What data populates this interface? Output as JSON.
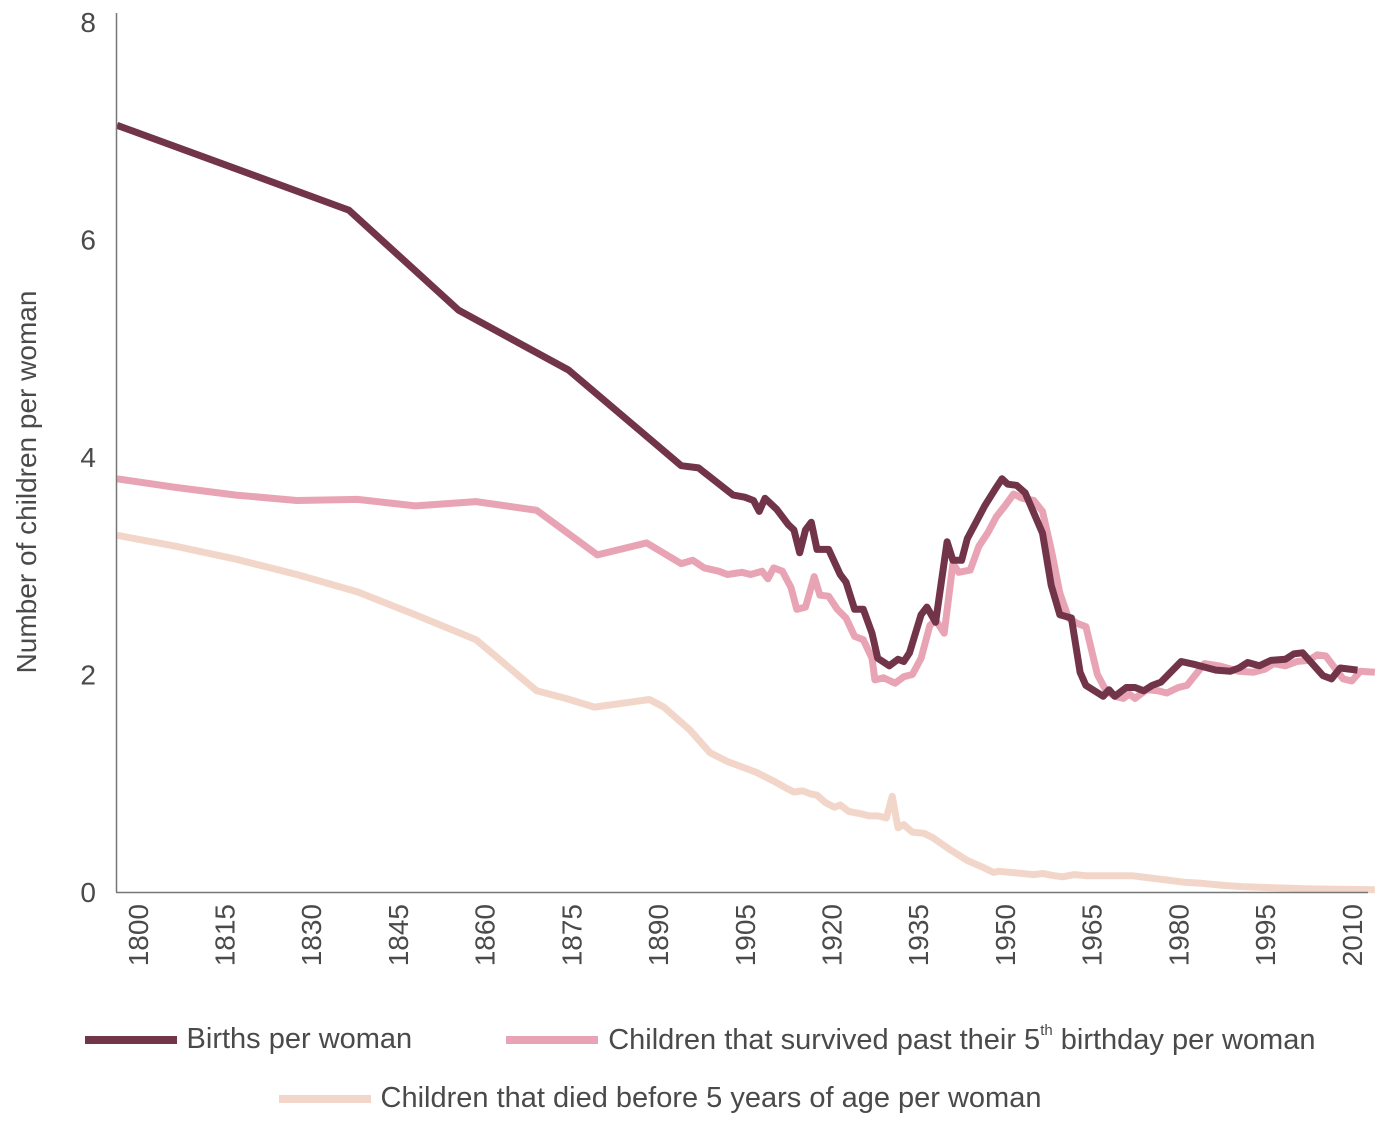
{
  "chart_data": {
    "type": "line",
    "title": "",
    "xlabel": "",
    "ylabel": "Number of children per woman",
    "xlim": [
      1796.4,
      2013.5
    ],
    "ylim": [
      0,
      8
    ],
    "yticks": [
      0,
      2,
      4,
      6,
      8
    ],
    "xticks": [
      1800,
      1815,
      1830,
      1845,
      1860,
      1875,
      1890,
      1905,
      1920,
      1935,
      1950,
      1965,
      1980,
      1995,
      2010
    ],
    "grid": false,
    "legend_position": "bottom",
    "series": [
      {
        "name": "Births per woman",
        "color": "#723449",
        "points": [
          [
            1796.4,
            7.05
          ],
          [
            1817,
            6.65
          ],
          [
            1836.5,
            6.27
          ],
          [
            1855.5,
            5.35
          ],
          [
            1874.5,
            4.8
          ],
          [
            1894,
            3.92
          ],
          [
            1897,
            3.9
          ],
          [
            1903,
            3.65
          ],
          [
            1905,
            3.63
          ],
          [
            1906.5,
            3.6
          ],
          [
            1907.5,
            3.5
          ],
          [
            1908.5,
            3.62
          ],
          [
            1910.5,
            3.52
          ],
          [
            1912.5,
            3.38
          ],
          [
            1913.5,
            3.33
          ],
          [
            1914.5,
            3.12
          ],
          [
            1915.5,
            3.33
          ],
          [
            1916.5,
            3.4
          ],
          [
            1917.5,
            3.15
          ],
          [
            1919.5,
            3.15
          ],
          [
            1921.5,
            2.92
          ],
          [
            1922.5,
            2.85
          ],
          [
            1924,
            2.6
          ],
          [
            1925.5,
            2.6
          ],
          [
            1927,
            2.38
          ],
          [
            1928,
            2.15
          ],
          [
            1930,
            2.08
          ],
          [
            1931.5,
            2.14
          ],
          [
            1932.5,
            2.12
          ],
          [
            1933.5,
            2.2
          ],
          [
            1935.5,
            2.55
          ],
          [
            1936.5,
            2.62
          ],
          [
            1938,
            2.48
          ],
          [
            1940,
            3.22
          ],
          [
            1941,
            3.05
          ],
          [
            1942.5,
            3.05
          ],
          [
            1943.5,
            3.25
          ],
          [
            1945,
            3.4
          ],
          [
            1946.5,
            3.55
          ],
          [
            1948.5,
            3.72
          ],
          [
            1949.5,
            3.8
          ],
          [
            1950.5,
            3.75
          ],
          [
            1952,
            3.74
          ],
          [
            1953.5,
            3.67
          ],
          [
            1956.5,
            3.3
          ],
          [
            1958,
            2.82
          ],
          [
            1959.5,
            2.55
          ],
          [
            1961.5,
            2.52
          ],
          [
            1963,
            2.02
          ],
          [
            1964,
            1.9
          ],
          [
            1965.5,
            1.85
          ],
          [
            1967,
            1.8
          ],
          [
            1968,
            1.86
          ],
          [
            1969,
            1.8
          ],
          [
            1971,
            1.88
          ],
          [
            1972.5,
            1.88
          ],
          [
            1974,
            1.85
          ],
          [
            1975.5,
            1.9
          ],
          [
            1977,
            1.93
          ],
          [
            1980.5,
            2.12
          ],
          [
            1983,
            2.09
          ],
          [
            1986.5,
            2.04
          ],
          [
            1989,
            2.03
          ],
          [
            1990.5,
            2.06
          ],
          [
            1992,
            2.11
          ],
          [
            1994,
            2.08
          ],
          [
            1996,
            2.13
          ],
          [
            1998.5,
            2.14
          ],
          [
            2000,
            2.19
          ],
          [
            2001.5,
            2.2
          ],
          [
            2005,
            1.99
          ],
          [
            2006.5,
            1.96
          ],
          [
            2008,
            2.06
          ],
          [
            2011,
            2.04
          ]
        ]
      },
      {
        "name": "Children that survived past their 5th birthday per woman",
        "color": "#e8a4b5",
        "points": [
          [
            1796.4,
            3.8
          ],
          [
            1806.5,
            3.72
          ],
          [
            1817,
            3.65
          ],
          [
            1827.5,
            3.6
          ],
          [
            1838,
            3.61
          ],
          [
            1848,
            3.55
          ],
          [
            1858.5,
            3.59
          ],
          [
            1869,
            3.51
          ],
          [
            1879.5,
            3.1
          ],
          [
            1888,
            3.21
          ],
          [
            1894,
            3.02
          ],
          [
            1896,
            3.05
          ],
          [
            1898,
            2.98
          ],
          [
            1900.5,
            2.95
          ],
          [
            1902,
            2.92
          ],
          [
            1904.5,
            2.94
          ],
          [
            1906,
            2.92
          ],
          [
            1908,
            2.95
          ],
          [
            1909,
            2.88
          ],
          [
            1910,
            2.98
          ],
          [
            1911.5,
            2.95
          ],
          [
            1913,
            2.8
          ],
          [
            1914,
            2.6
          ],
          [
            1915.5,
            2.62
          ],
          [
            1917,
            2.9
          ],
          [
            1918,
            2.73
          ],
          [
            1919.5,
            2.72
          ],
          [
            1921,
            2.6
          ],
          [
            1922.5,
            2.52
          ],
          [
            1924,
            2.35
          ],
          [
            1925.5,
            2.32
          ],
          [
            1927,
            2.15
          ],
          [
            1927.5,
            1.95
          ],
          [
            1929,
            1.97
          ],
          [
            1931,
            1.92
          ],
          [
            1932.5,
            1.98
          ],
          [
            1934,
            2.0
          ],
          [
            1935.5,
            2.15
          ],
          [
            1937,
            2.45
          ],
          [
            1938,
            2.5
          ],
          [
            1939.5,
            2.38
          ],
          [
            1941,
            3.02
          ],
          [
            1942,
            2.94
          ],
          [
            1944,
            2.96
          ],
          [
            1945.5,
            3.18
          ],
          [
            1947,
            3.3
          ],
          [
            1948.5,
            3.45
          ],
          [
            1950,
            3.55
          ],
          [
            1951.5,
            3.66
          ],
          [
            1953,
            3.62
          ],
          [
            1955,
            3.6
          ],
          [
            1956.5,
            3.5
          ],
          [
            1958,
            3.15
          ],
          [
            1959.5,
            2.75
          ],
          [
            1961,
            2.52
          ],
          [
            1962.5,
            2.47
          ],
          [
            1964,
            2.44
          ],
          [
            1966,
            2.0
          ],
          [
            1967.5,
            1.85
          ],
          [
            1969,
            1.8
          ],
          [
            1970.5,
            1.78
          ],
          [
            1971.5,
            1.82
          ],
          [
            1972.5,
            1.78
          ],
          [
            1974.5,
            1.86
          ],
          [
            1976.5,
            1.85
          ],
          [
            1978,
            1.83
          ],
          [
            1980,
            1.88
          ],
          [
            1981.5,
            1.9
          ],
          [
            1984.5,
            2.1
          ],
          [
            1987,
            2.08
          ],
          [
            1990.5,
            2.03
          ],
          [
            1993,
            2.02
          ],
          [
            1995,
            2.05
          ],
          [
            1996.5,
            2.1
          ],
          [
            1998.5,
            2.08
          ],
          [
            2000.5,
            2.12
          ],
          [
            2002.5,
            2.13
          ],
          [
            2004,
            2.18
          ],
          [
            2005.5,
            2.17
          ],
          [
            2008.5,
            1.96
          ],
          [
            2010,
            1.94
          ],
          [
            2011.5,
            2.03
          ],
          [
            2014,
            2.02
          ]
        ]
      },
      {
        "name": "Children that died before 5 years of age per woman",
        "color": "#f3d6ca",
        "points": [
          [
            1796.4,
            3.28
          ],
          [
            1806.5,
            3.18
          ],
          [
            1817,
            3.06
          ],
          [
            1827.5,
            2.92
          ],
          [
            1838,
            2.76
          ],
          [
            1848,
            2.55
          ],
          [
            1858.5,
            2.32
          ],
          [
            1869,
            1.85
          ],
          [
            1874,
            1.78
          ],
          [
            1879,
            1.7
          ],
          [
            1888.5,
            1.77
          ],
          [
            1891,
            1.7
          ],
          [
            1895.5,
            1.49
          ],
          [
            1899,
            1.28
          ],
          [
            1902,
            1.2
          ],
          [
            1907,
            1.1
          ],
          [
            1910,
            1.02
          ],
          [
            1912,
            0.96
          ],
          [
            1913.5,
            0.92
          ],
          [
            1915,
            0.93
          ],
          [
            1916.5,
            0.9
          ],
          [
            1917.5,
            0.89
          ],
          [
            1919,
            0.82
          ],
          [
            1920.5,
            0.78
          ],
          [
            1921.5,
            0.8
          ],
          [
            1923,
            0.74
          ],
          [
            1925,
            0.72
          ],
          [
            1926.5,
            0.7
          ],
          [
            1928,
            0.7
          ],
          [
            1929.5,
            0.68
          ],
          [
            1930.5,
            0.88
          ],
          [
            1931.5,
            0.59
          ],
          [
            1932.5,
            0.62
          ],
          [
            1934,
            0.55
          ],
          [
            1936,
            0.54
          ],
          [
            1937.5,
            0.5
          ],
          [
            1940.5,
            0.39
          ],
          [
            1943.5,
            0.29
          ],
          [
            1946.5,
            0.22
          ],
          [
            1948,
            0.18
          ],
          [
            1949,
            0.19
          ],
          [
            1951,
            0.18
          ],
          [
            1953,
            0.17
          ],
          [
            1955,
            0.16
          ],
          [
            1956.5,
            0.17
          ],
          [
            1958.5,
            0.15
          ],
          [
            1960,
            0.14
          ],
          [
            1962,
            0.16
          ],
          [
            1964,
            0.15
          ],
          [
            1968,
            0.15
          ],
          [
            1972,
            0.15
          ],
          [
            1975,
            0.13
          ],
          [
            1978,
            0.11
          ],
          [
            1981,
            0.09
          ],
          [
            1984,
            0.08
          ],
          [
            1988,
            0.06
          ],
          [
            1991,
            0.05
          ],
          [
            1996,
            0.04
          ],
          [
            2002,
            0.03
          ],
          [
            2014,
            0.02
          ]
        ]
      }
    ]
  },
  "legend": {
    "items": [
      {
        "label": "Births per woman",
        "color": "#723449"
      },
      {
        "label_before": "Children that survived past their 5",
        "label_sup": "th",
        "label_after": " birthday per woman",
        "color": "#e8a4b5"
      },
      {
        "label": "Children that died before 5 years of age per woman",
        "color": "#f3d6ca"
      }
    ]
  }
}
